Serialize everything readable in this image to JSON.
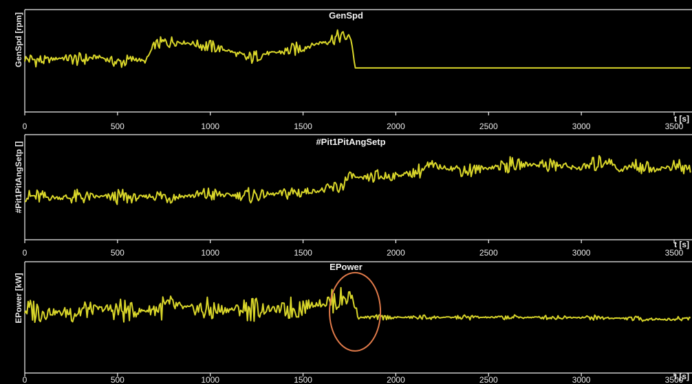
{
  "chart_data": [
    {
      "type": "line",
      "title": "GenSpd",
      "ylabel": "GenSpd [rpm]",
      "xlabel": "t [s]",
      "xlim": [
        0,
        3600
      ],
      "xticks": [
        "0",
        "500",
        "1000",
        "1500",
        "2000",
        "2500",
        "3000",
        "3500"
      ],
      "grid": false,
      "series": [
        {
          "color": "#d9d62a",
          "x": [
            0,
            100,
            200,
            300,
            400,
            500,
            600,
            650,
            700,
            800,
            900,
            1000,
            1100,
            1200,
            1300,
            1400,
            1500,
            1600,
            1700,
            1760,
            1780,
            2000,
            2500,
            3000,
            3500,
            3600
          ],
          "y": [
            0.52,
            0.5,
            0.53,
            0.51,
            0.54,
            0.48,
            0.52,
            0.49,
            0.66,
            0.69,
            0.67,
            0.64,
            0.6,
            0.52,
            0.57,
            0.59,
            0.63,
            0.68,
            0.74,
            0.72,
            0.43,
            0.43,
            0.43,
            0.43,
            0.43,
            0.43
          ]
        }
      ]
    },
    {
      "type": "line",
      "title": "#Pit1PitAngSetp",
      "ylabel": "#Pit1PitAngSetp []",
      "xlabel": "t [s]",
      "xlim": [
        0,
        3600
      ],
      "xticks": [
        "0",
        "500",
        "1000",
        "1500",
        "2000",
        "2500",
        "3000",
        "3500"
      ],
      "grid": false,
      "series": [
        {
          "color": "#d9d62a",
          "x": [
            0,
            200,
            400,
            600,
            700,
            800,
            1000,
            1200,
            1400,
            1600,
            1700,
            1760,
            1800,
            1900,
            2000,
            2100,
            2200,
            2400,
            2600,
            2800,
            3000,
            3150,
            3200,
            3300,
            3400,
            3500,
            3600
          ],
          "y": [
            0.41,
            0.4,
            0.41,
            0.4,
            0.42,
            0.41,
            0.43,
            0.42,
            0.44,
            0.47,
            0.5,
            0.62,
            0.58,
            0.6,
            0.61,
            0.64,
            0.7,
            0.66,
            0.71,
            0.72,
            0.68,
            0.76,
            0.66,
            0.71,
            0.67,
            0.7,
            0.66
          ]
        }
      ]
    },
    {
      "type": "line",
      "title": "EPower",
      "ylabel": "EPower [kW]",
      "xlabel": "t [s]",
      "xlim": [
        0,
        3600
      ],
      "xticks": [
        "0",
        "500",
        "1000",
        "1500",
        "2000",
        "2500",
        "3000",
        "3500"
      ],
      "grid": false,
      "series": [
        {
          "color": "#d9d62a",
          "x": [
            0,
            200,
            400,
            600,
            800,
            1000,
            1200,
            1400,
            1600,
            1700,
            1760,
            1800,
            1900,
            2000,
            2500,
            3000,
            3500,
            3600
          ],
          "y": [
            0.57,
            0.54,
            0.58,
            0.55,
            0.6,
            0.56,
            0.58,
            0.57,
            0.63,
            0.66,
            0.7,
            0.5,
            0.5,
            0.5,
            0.5,
            0.5,
            0.48,
            0.5
          ]
        }
      ],
      "annotations": [
        {
          "shape": "ellipse",
          "color": "#e07a4a",
          "x": 1780,
          "y": 0.55
        }
      ]
    }
  ]
}
